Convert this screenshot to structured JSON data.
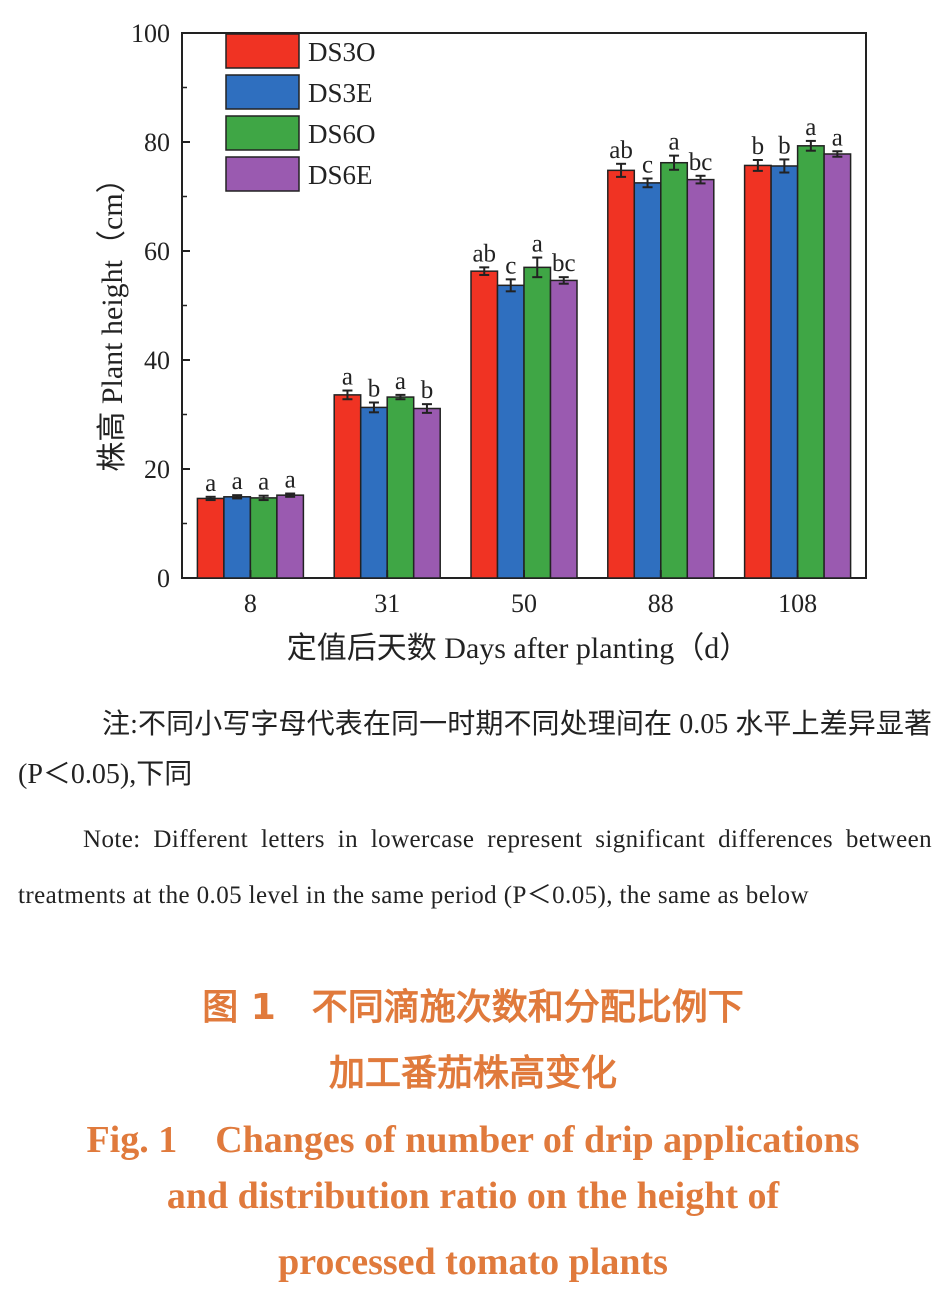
{
  "chart_data": {
    "type": "bar",
    "categories": [
      "8",
      "31",
      "50",
      "88",
      "108"
    ],
    "series": [
      {
        "name": "DS3O",
        "color": "#f03323",
        "values": [
          14.6,
          33.6,
          56.3,
          74.8,
          75.7
        ],
        "errors": [
          0.3,
          0.8,
          0.7,
          1.2,
          1.0
        ],
        "letters": [
          "a",
          "a",
          "ab",
          "ab",
          "b"
        ]
      },
      {
        "name": "DS3E",
        "color": "#2f6fbf",
        "values": [
          14.9,
          31.3,
          53.7,
          72.5,
          75.6
        ],
        "errors": [
          0.3,
          0.9,
          1.1,
          0.8,
          1.2
        ],
        "letters": [
          "a",
          "b",
          "c",
          "c",
          "b"
        ]
      },
      {
        "name": "DS6O",
        "color": "#3fa645",
        "values": [
          14.7,
          33.2,
          57.0,
          76.2,
          79.3
        ],
        "errors": [
          0.4,
          0.4,
          1.8,
          1.3,
          0.9
        ],
        "letters": [
          "a",
          "a",
          "a",
          "a",
          "a"
        ]
      },
      {
        "name": "DS6E",
        "color": "#9a5ab0",
        "values": [
          15.2,
          31.1,
          54.6,
          73.1,
          77.8
        ],
        "errors": [
          0.3,
          0.8,
          0.6,
          0.7,
          0.5
        ],
        "letters": [
          "a",
          "b",
          "bc",
          "bc",
          "a"
        ]
      }
    ],
    "ylim": [
      0,
      100
    ],
    "yticks": [
      "0",
      "20",
      "40",
      "60",
      "80",
      "100"
    ],
    "ylabel": "株高 Plant height（cm）",
    "xlabel": "定值后天数 Days after planting（d）",
    "grid": false,
    "legend": "top-left"
  },
  "note_cn": "注:不同小写字母代表在同一时期不同处理间在 0.05 水平上差异显著(P＜0.05),下同",
  "note_en": "Note: Different letters in lowercase represent significant differences between treatments at the 0.05 level in the same period (P＜0.05), the same as below",
  "caption": {
    "cn_line1": "图 1　不同滴施次数和分配比例下",
    "cn_line2": "加工番茄株高变化",
    "en_line1": "Fig. 1　Changes of number of drip applications",
    "en_line2": "and distribution ratio on the height of",
    "en_line3": "processed tomato plants"
  }
}
